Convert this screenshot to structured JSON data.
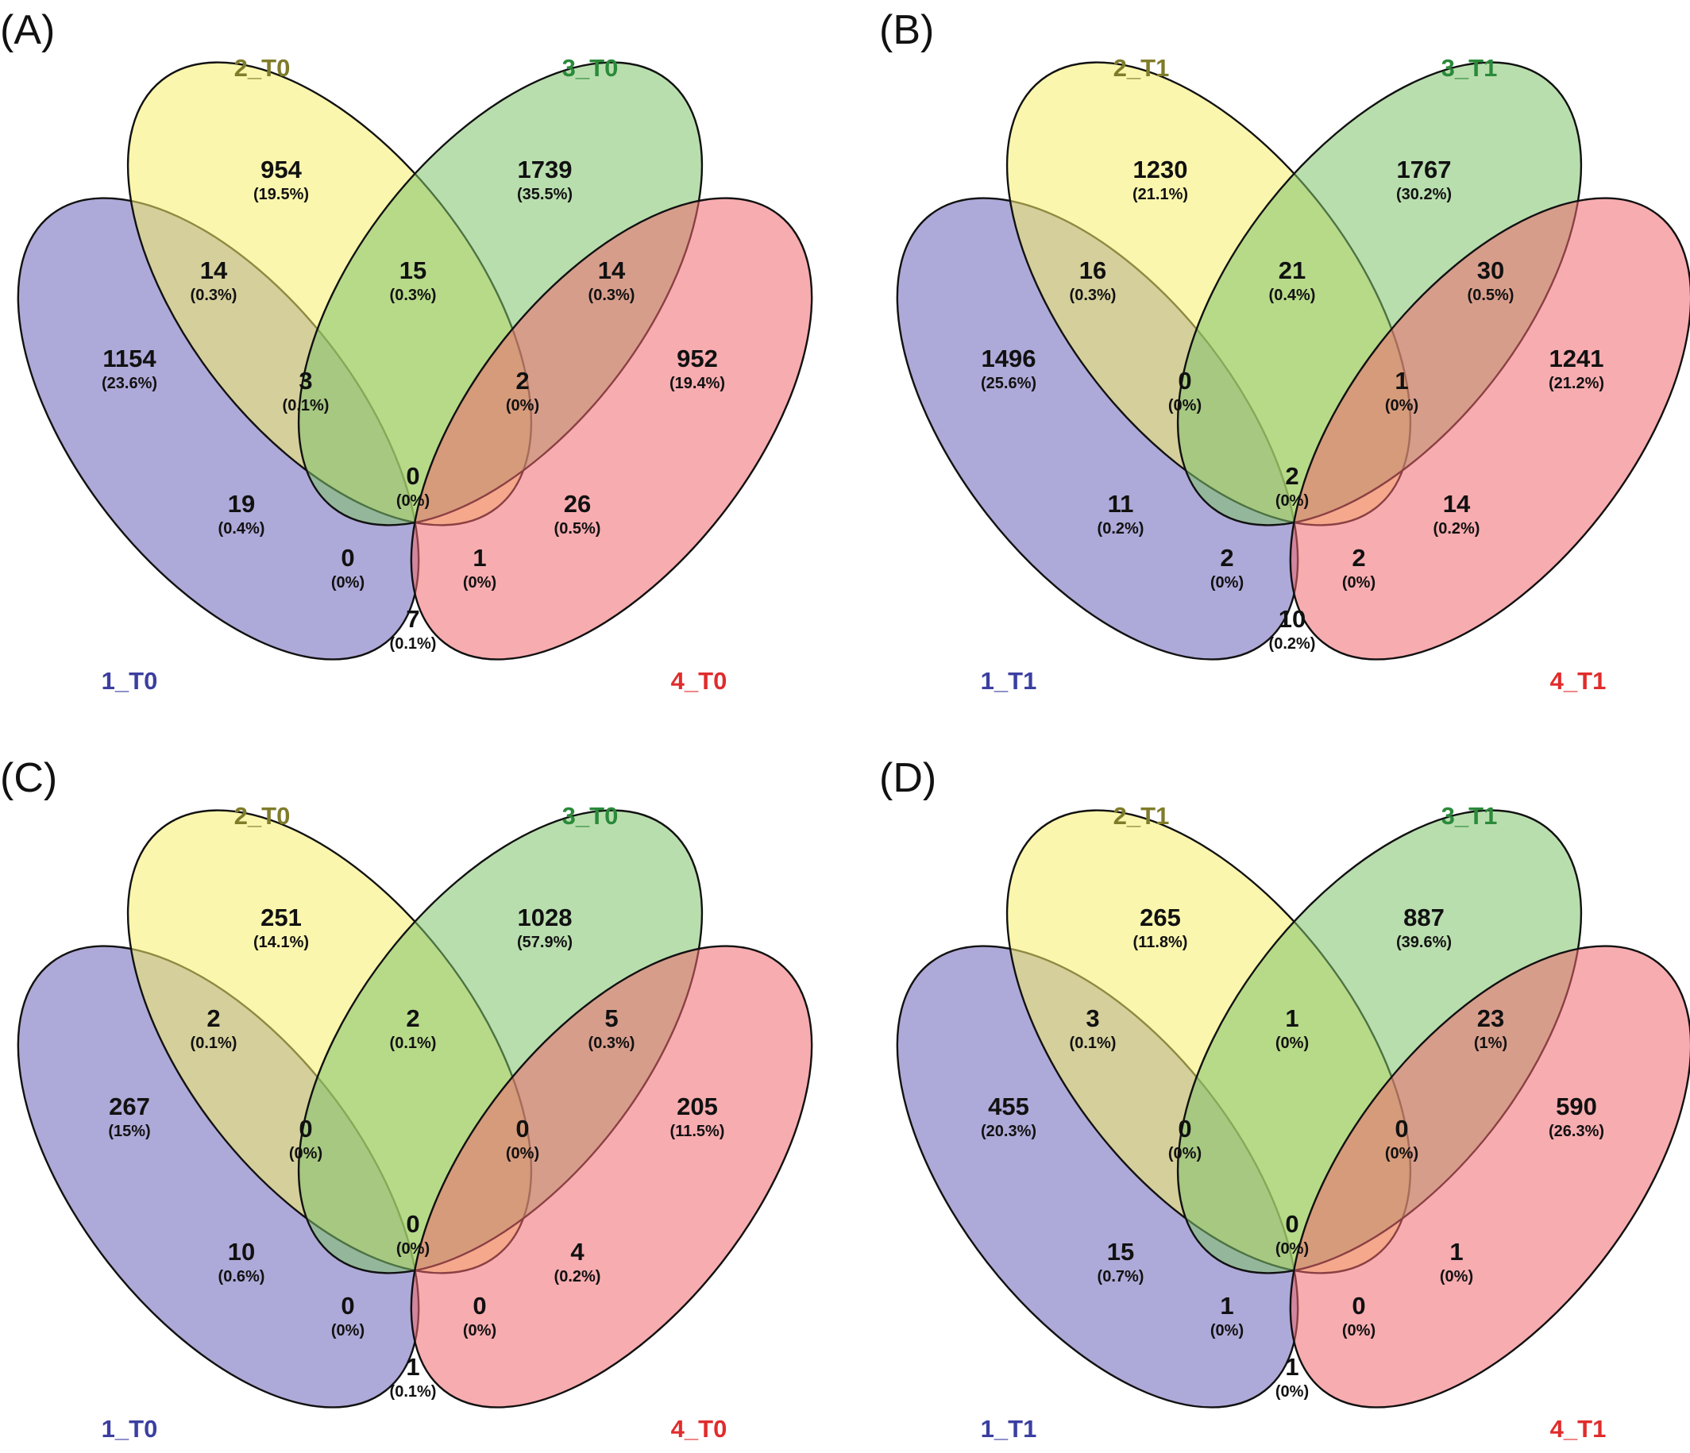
{
  "colors": {
    "set1": "#6a63b8",
    "set2": "#f5ef6a",
    "set3": "#7fc36b",
    "set4": "#f0686f",
    "label1": "#3b3fa0",
    "label2": "#7f7c2a",
    "label3": "#2a8a3a",
    "label4": "#e02c2c"
  },
  "panels": [
    {
      "letter": "(A)",
      "labels": [
        "1_T0",
        "2_T0",
        "3_T0",
        "4_T0"
      ],
      "regions": {
        "r1": {
          "count": "1154",
          "pct": "(23.6%)"
        },
        "r2": {
          "count": "954",
          "pct": "(19.5%)"
        },
        "r3": {
          "count": "1739",
          "pct": "(35.5%)"
        },
        "r4": {
          "count": "952",
          "pct": "(19.4%)"
        },
        "r12": {
          "count": "14",
          "pct": "(0.3%)"
        },
        "r23": {
          "count": "15",
          "pct": "(0.3%)"
        },
        "r34": {
          "count": "14",
          "pct": "(0.3%)"
        },
        "r123": {
          "count": "3",
          "pct": "(0.1%)"
        },
        "r234": {
          "count": "2",
          "pct": "(0%)"
        },
        "r13": {
          "count": "19",
          "pct": "(0.4%)"
        },
        "r24": {
          "count": "26",
          "pct": "(0.5%)"
        },
        "r1234": {
          "count": "0",
          "pct": "(0%)"
        },
        "r134": {
          "count": "0",
          "pct": "(0%)"
        },
        "r124": {
          "count": "1",
          "pct": "(0%)"
        },
        "r14": {
          "count": "7",
          "pct": "(0.1%)"
        }
      }
    },
    {
      "letter": "(B)",
      "labels": [
        "1_T1",
        "2_T1",
        "3_T1",
        "4_T1"
      ],
      "regions": {
        "r1": {
          "count": "1496",
          "pct": "(25.6%)"
        },
        "r2": {
          "count": "1230",
          "pct": "(21.1%)"
        },
        "r3": {
          "count": "1767",
          "pct": "(30.2%)"
        },
        "r4": {
          "count": "1241",
          "pct": "(21.2%)"
        },
        "r12": {
          "count": "16",
          "pct": "(0.3%)"
        },
        "r23": {
          "count": "21",
          "pct": "(0.4%)"
        },
        "r34": {
          "count": "30",
          "pct": "(0.5%)"
        },
        "r123": {
          "count": "0",
          "pct": "(0%)"
        },
        "r234": {
          "count": "1",
          "pct": "(0%)"
        },
        "r13": {
          "count": "11",
          "pct": "(0.2%)"
        },
        "r24": {
          "count": "14",
          "pct": "(0.2%)"
        },
        "r1234": {
          "count": "2",
          "pct": "(0%)"
        },
        "r134": {
          "count": "2",
          "pct": "(0%)"
        },
        "r124": {
          "count": "2",
          "pct": "(0%)"
        },
        "r14": {
          "count": "10",
          "pct": "(0.2%)"
        }
      }
    },
    {
      "letter": "(C)",
      "labels": [
        "1_T0",
        "2_T0",
        "3_T0",
        "4_T0"
      ],
      "regions": {
        "r1": {
          "count": "267",
          "pct": "(15%)"
        },
        "r2": {
          "count": "251",
          "pct": "(14.1%)"
        },
        "r3": {
          "count": "1028",
          "pct": "(57.9%)"
        },
        "r4": {
          "count": "205",
          "pct": "(11.5%)"
        },
        "r12": {
          "count": "2",
          "pct": "(0.1%)"
        },
        "r23": {
          "count": "2",
          "pct": "(0.1%)"
        },
        "r34": {
          "count": "5",
          "pct": "(0.3%)"
        },
        "r123": {
          "count": "0",
          "pct": "(0%)"
        },
        "r234": {
          "count": "0",
          "pct": "(0%)"
        },
        "r13": {
          "count": "10",
          "pct": "(0.6%)"
        },
        "r24": {
          "count": "4",
          "pct": "(0.2%)"
        },
        "r1234": {
          "count": "0",
          "pct": "(0%)"
        },
        "r134": {
          "count": "0",
          "pct": "(0%)"
        },
        "r124": {
          "count": "0",
          "pct": "(0%)"
        },
        "r14": {
          "count": "1",
          "pct": "(0.1%)"
        }
      }
    },
    {
      "letter": "(D)",
      "labels": [
        "1_T1",
        "2_T1",
        "3_T1",
        "4_T1"
      ],
      "regions": {
        "r1": {
          "count": "455",
          "pct": "(20.3%)"
        },
        "r2": {
          "count": "265",
          "pct": "(11.8%)"
        },
        "r3": {
          "count": "887",
          "pct": "(39.6%)"
        },
        "r4": {
          "count": "590",
          "pct": "(26.3%)"
        },
        "r12": {
          "count": "3",
          "pct": "(0.1%)"
        },
        "r23": {
          "count": "1",
          "pct": "(0%)"
        },
        "r34": {
          "count": "23",
          "pct": "(1%)"
        },
        "r123": {
          "count": "0",
          "pct": "(0%)"
        },
        "r234": {
          "count": "0",
          "pct": "(0%)"
        },
        "r13": {
          "count": "15",
          "pct": "(0.7%)"
        },
        "r24": {
          "count": "1",
          "pct": "(0%)"
        },
        "r1234": {
          "count": "0",
          "pct": "(0%)"
        },
        "r134": {
          "count": "1",
          "pct": "(0%)"
        },
        "r124": {
          "count": "0",
          "pct": "(0%)"
        },
        "r14": {
          "count": "1",
          "pct": "(0%)"
        }
      }
    }
  ]
}
